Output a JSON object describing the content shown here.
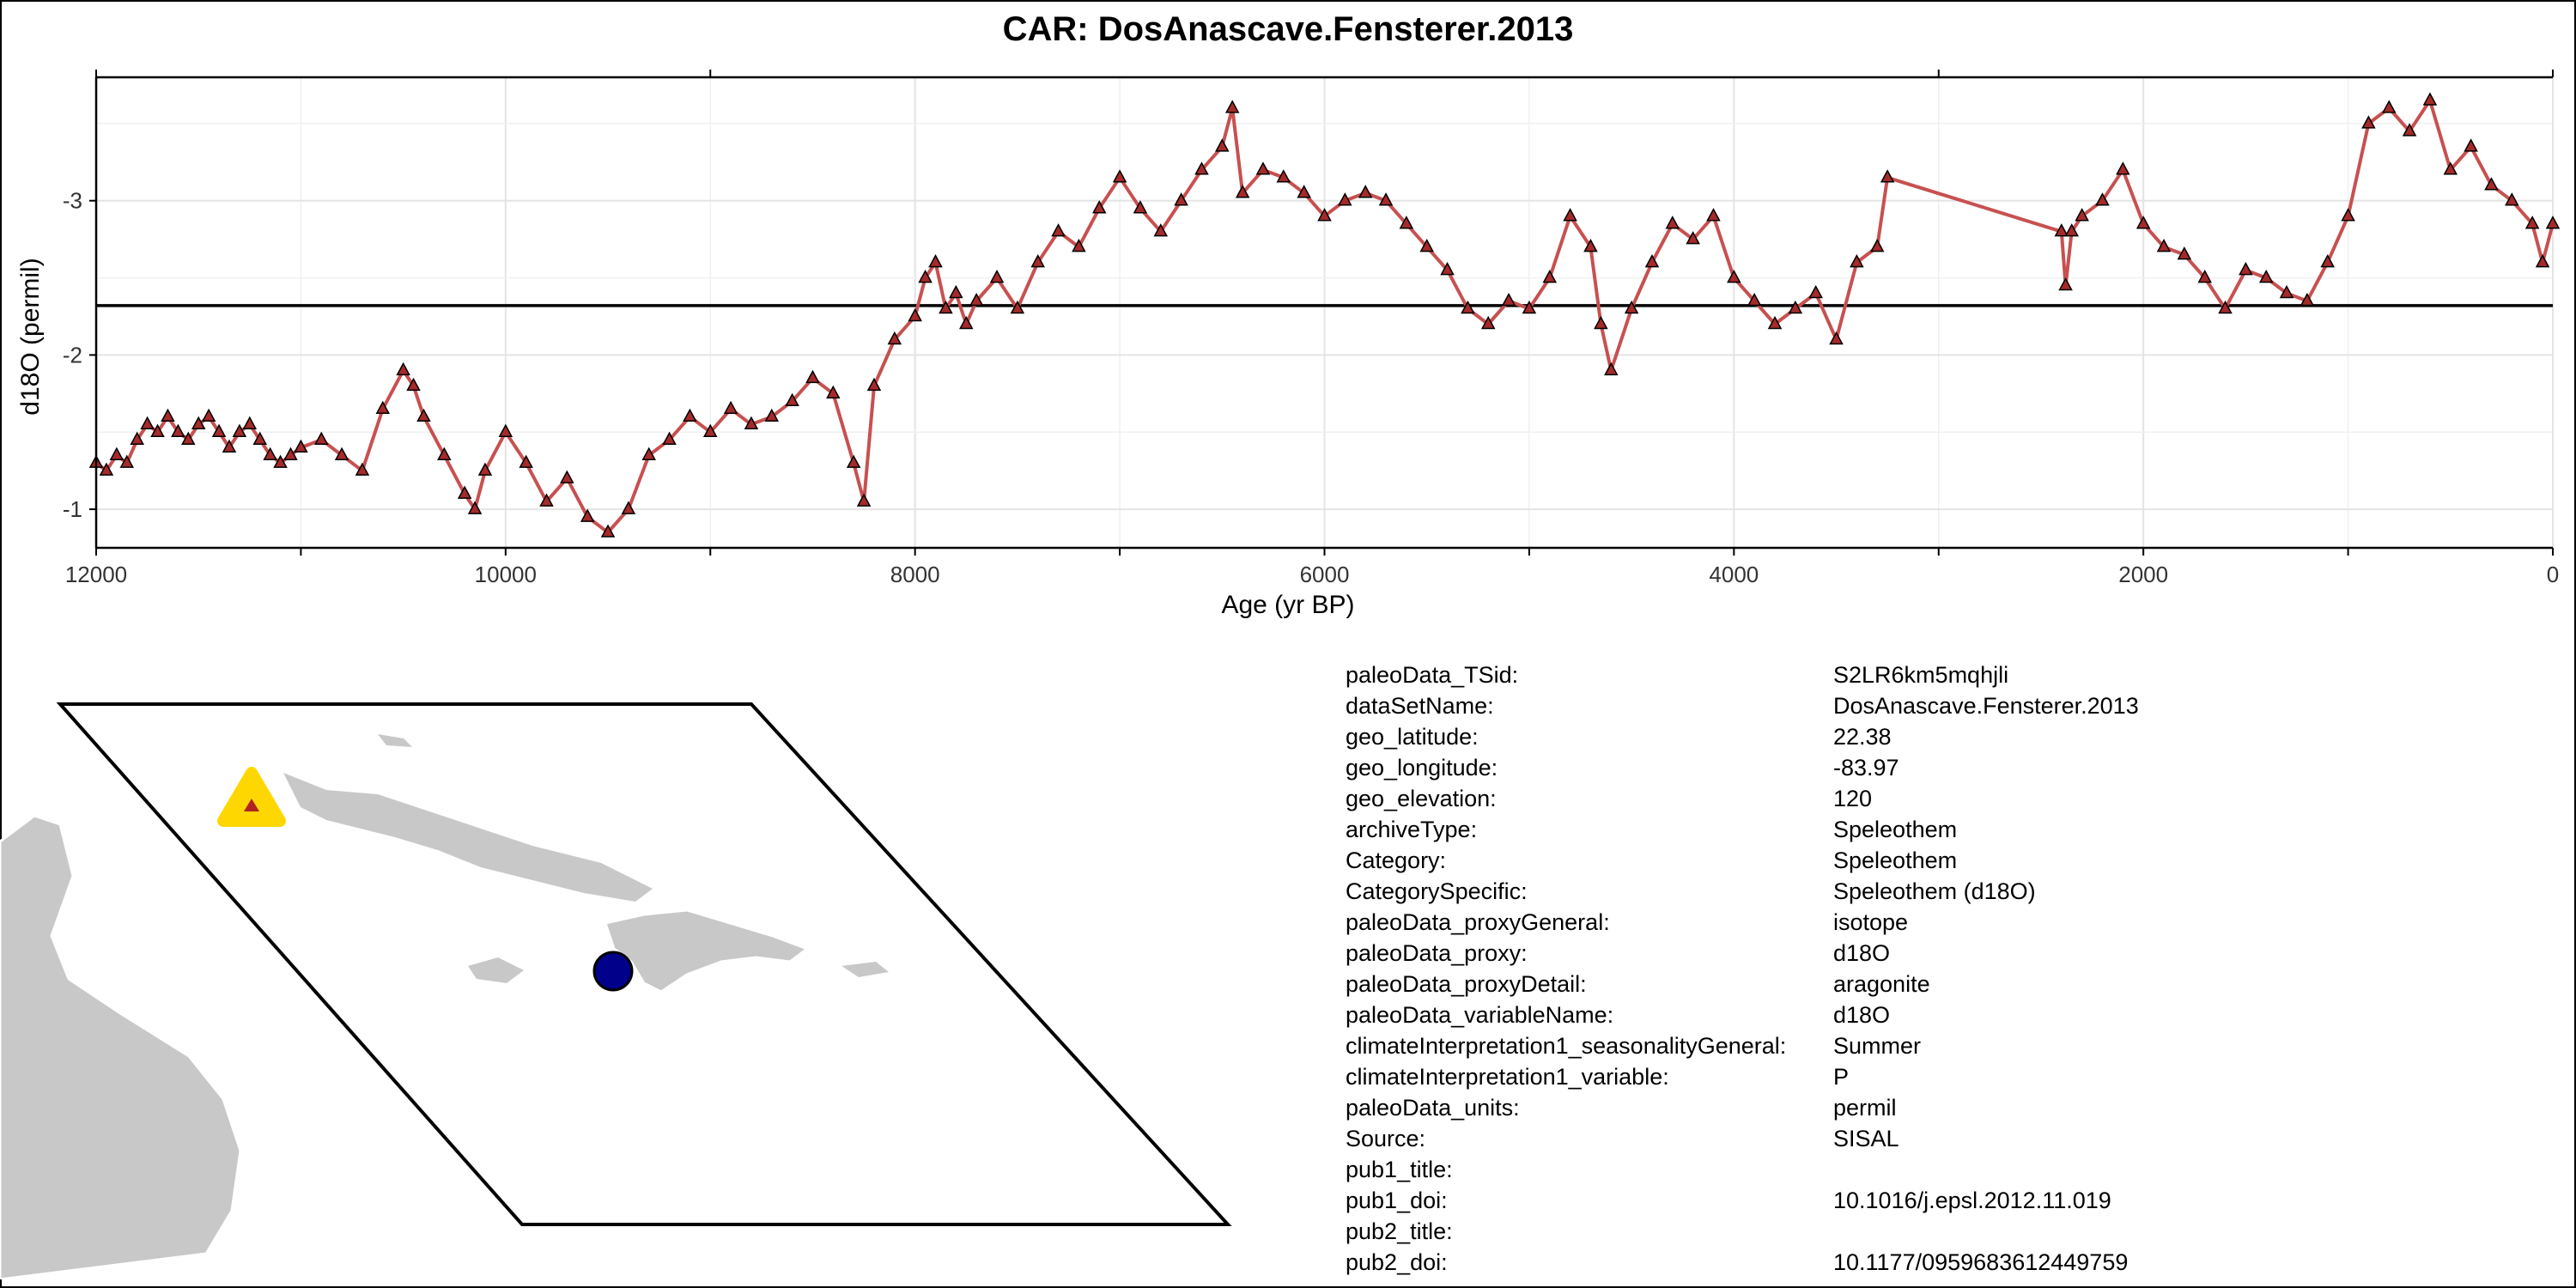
{
  "title": "CAR: DosAnascave.Fensterer.2013",
  "chart_data": {
    "type": "line",
    "title": "CAR: DosAnascave.Fensterer.2013",
    "xlabel": "Age (yr BP)",
    "ylabel": "d18O (permil)",
    "xlim": [
      12000,
      0
    ],
    "ylim": [
      -0.75,
      -3.8
    ],
    "x_reversed": true,
    "y_reversed": true,
    "x_ticks": [
      12000,
      10000,
      8000,
      6000,
      4000,
      2000,
      0
    ],
    "y_ticks": [
      -1,
      -2,
      -3
    ],
    "reference_line_y": -2.32,
    "grid": true,
    "marker": "triangle",
    "line_color": "#c85050",
    "marker_color": "#a52a2a",
    "series": [
      {
        "x": [
          12000,
          11950,
          11900,
          11850,
          11800,
          11750,
          11700,
          11650,
          11600,
          11550,
          11500,
          11450,
          11400,
          11350,
          11300,
          11250,
          11200,
          11150,
          11100,
          11050,
          11000,
          10900,
          10800,
          10700,
          10600,
          10500,
          10450,
          10400,
          10300,
          10200,
          10150,
          10100,
          10000,
          9900,
          9800,
          9700,
          9600,
          9500,
          9400,
          9300,
          9200,
          9100,
          9000,
          8900,
          8800,
          8700,
          8600,
          8500,
          8400,
          8300,
          8250,
          8200,
          8100,
          8000,
          7950,
          7900,
          7850,
          7800,
          7750,
          7700,
          7600,
          7500,
          7400,
          7300,
          7200,
          7100,
          7000,
          6900,
          6800,
          6700,
          6600,
          6500,
          6450,
          6400,
          6300,
          6200,
          6100,
          6000,
          5900,
          5800,
          5700,
          5600,
          5500,
          5400,
          5300,
          5200,
          5100,
          5000,
          4900,
          4800,
          4700,
          4650,
          4600,
          4500,
          4400,
          4300,
          4200,
          4100,
          4000,
          3900,
          3800,
          3700,
          3600,
          3500,
          3400,
          3300,
          3250,
          2400,
          2380,
          2350,
          2300,
          2200,
          2100,
          2000,
          1900,
          1800,
          1700,
          1600,
          1500,
          1400,
          1300,
          1200,
          1100,
          1000,
          900,
          800,
          700,
          600,
          500,
          400,
          300,
          200,
          100,
          50,
          0
        ],
        "y": [
          -1.3,
          -1.25,
          -1.35,
          -1.3,
          -1.45,
          -1.55,
          -1.5,
          -1.6,
          -1.5,
          -1.45,
          -1.55,
          -1.6,
          -1.5,
          -1.4,
          -1.5,
          -1.55,
          -1.45,
          -1.35,
          -1.3,
          -1.35,
          -1.4,
          -1.45,
          -1.35,
          -1.25,
          -1.65,
          -1.9,
          -1.8,
          -1.6,
          -1.35,
          -1.1,
          -1.0,
          -1.25,
          -1.5,
          -1.3,
          -1.05,
          -1.2,
          -0.95,
          -0.85,
          -1.0,
          -1.35,
          -1.45,
          -1.6,
          -1.5,
          -1.65,
          -1.55,
          -1.6,
          -1.7,
          -1.85,
          -1.75,
          -1.3,
          -1.05,
          -1.8,
          -2.1,
          -2.25,
          -2.5,
          -2.6,
          -2.3,
          -2.4,
          -2.2,
          -2.35,
          -2.5,
          -2.3,
          -2.6,
          -2.8,
          -2.7,
          -2.95,
          -3.15,
          -2.95,
          -2.8,
          -3.0,
          -3.2,
          -3.35,
          -3.6,
          -3.05,
          -3.2,
          -3.15,
          -3.05,
          -2.9,
          -3.0,
          -3.05,
          -3.0,
          -2.85,
          -2.7,
          -2.55,
          -2.3,
          -2.2,
          -2.35,
          -2.3,
          -2.5,
          -2.9,
          -2.7,
          -2.2,
          -1.9,
          -2.3,
          -2.6,
          -2.85,
          -2.75,
          -2.9,
          -2.5,
          -2.35,
          -2.2,
          -2.3,
          -2.4,
          -2.1,
          -2.6,
          -2.7,
          -3.15,
          -2.8,
          -2.45,
          -2.8,
          -2.9,
          -3.0,
          -3.2,
          -2.85,
          -2.7,
          -2.65,
          -2.5,
          -2.3,
          -2.55,
          -2.5,
          -2.4,
          -2.35,
          -2.6,
          -2.9,
          -3.5,
          -3.6,
          -3.45,
          -3.65,
          -3.2,
          -3.35,
          -3.1,
          -3.0,
          -2.85,
          -2.6,
          -2.85
        ]
      }
    ]
  },
  "map": {
    "site_marker_color": "#ffd700",
    "site_inner_color": "#b22222",
    "target_marker_color": "#00008b",
    "land_color": "#c8c8c8"
  },
  "metadata": [
    {
      "key": "paleoData_TSid:",
      "value": "S2LR6km5mqhjli"
    },
    {
      "key": "dataSetName:",
      "value": "DosAnascave.Fensterer.2013"
    },
    {
      "key": "geo_latitude:",
      "value": "22.38"
    },
    {
      "key": "geo_longitude:",
      "value": "-83.97"
    },
    {
      "key": "geo_elevation:",
      "value": "120"
    },
    {
      "key": "archiveType:",
      "value": "Speleothem"
    },
    {
      "key": "Category:",
      "value": "Speleothem"
    },
    {
      "key": "CategorySpecific:",
      "value": "Speleothem (d18O)"
    },
    {
      "key": "paleoData_proxyGeneral:",
      "value": "isotope"
    },
    {
      "key": "paleoData_proxy:",
      "value": "d18O"
    },
    {
      "key": "paleoData_proxyDetail:",
      "value": "aragonite"
    },
    {
      "key": "paleoData_variableName:",
      "value": "d18O"
    },
    {
      "key": "climateInterpretation1_seasonalityGeneral:",
      "value": "Summer"
    },
    {
      "key": "climateInterpretation1_variable:",
      "value": "P"
    },
    {
      "key": "paleoData_units:",
      "value": "permil"
    },
    {
      "key": "Source:",
      "value": "SISAL"
    },
    {
      "key": "pub1_title:",
      "value": ""
    },
    {
      "key": "pub1_doi:",
      "value": "10.1016/j.epsl.2012.11.019"
    },
    {
      "key": "pub2_title:",
      "value": ""
    },
    {
      "key": "pub2_doi:",
      "value": "10.1177/0959683612449759"
    }
  ]
}
